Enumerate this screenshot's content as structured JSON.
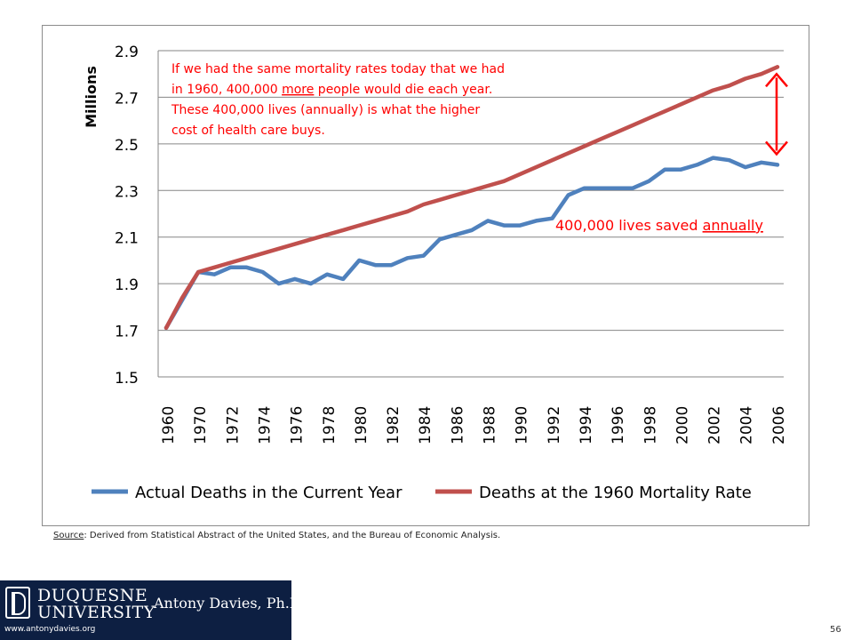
{
  "chart_data": {
    "type": "line",
    "title": "",
    "xlabel": "",
    "ylabel": "Millions",
    "ylim": [
      1.5,
      2.9
    ],
    "yticks": [
      "1.5",
      "1.7",
      "1.9",
      "2.1",
      "2.3",
      "2.5",
      "2.7",
      "2.9"
    ],
    "xtick_labels": [
      "1960",
      "1970",
      "1972",
      "1974",
      "1976",
      "1978",
      "1980",
      "1982",
      "1984",
      "1986",
      "1988",
      "1990",
      "1992",
      "1994",
      "1996",
      "1998",
      "2000",
      "2002",
      "2004",
      "2006"
    ],
    "grid": true,
    "legend_position": "bottom",
    "series": [
      {
        "name": "Actual Deaths in the Current Year",
        "color": "#4f81bd",
        "values": [
          1.71,
          1.83,
          1.95,
          1.94,
          1.97,
          1.97,
          1.95,
          1.9,
          1.92,
          1.9,
          1.94,
          1.92,
          2.0,
          1.98,
          1.98,
          2.01,
          2.02,
          2.09,
          2.11,
          2.13,
          2.17,
          2.15,
          2.15,
          2.17,
          2.18,
          2.28,
          2.31,
          2.31,
          2.31,
          2.31,
          2.34,
          2.39,
          2.39,
          2.41,
          2.44,
          2.43,
          2.4,
          2.42,
          2.41
        ]
      },
      {
        "name": "Deaths at the 1960 Mortality Rate",
        "color": "#c0504d",
        "values": [
          1.71,
          1.84,
          1.95,
          1.97,
          1.99,
          2.01,
          2.03,
          2.05,
          2.07,
          2.09,
          2.11,
          2.13,
          2.15,
          2.17,
          2.19,
          2.21,
          2.24,
          2.26,
          2.28,
          2.3,
          2.32,
          2.34,
          2.37,
          2.4,
          2.43,
          2.46,
          2.49,
          2.52,
          2.55,
          2.58,
          2.61,
          2.64,
          2.67,
          2.7,
          2.73,
          2.75,
          2.78,
          2.8,
          2.83
        ]
      }
    ],
    "annotations": {
      "note_lines": [
        "If we had the same mortality rates today that we had",
        "in 1960, 400,000 more people would die each year.",
        "These 400,000 lives (annually) is what the higher",
        "cost of health care buys."
      ],
      "note_emphasis": "more",
      "gap_label_prefix": "400,000 lives saved ",
      "gap_label_emphasis": "annually",
      "annotation_color": "#ff0000"
    }
  },
  "source": {
    "label": "Source",
    "text": ": Derived from Statistical Abstract of the United States, and the Bureau of Economic Analysis."
  },
  "footer": {
    "university_line1": "DUQUESNE",
    "university_line2": "UNIVERSITY",
    "author": "Antony Davies, Ph.D.",
    "website": "www.antonydavies.org",
    "page_number": "56"
  }
}
